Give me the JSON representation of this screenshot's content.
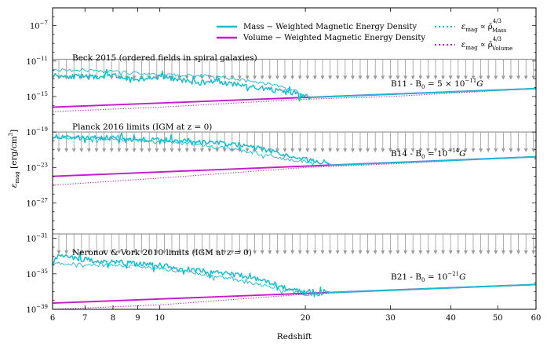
{
  "chart_data": {
    "type": "line",
    "xlabel": "Redshift",
    "ylabel": "ε_mag [erg/cm³]",
    "xscale": "log",
    "yscale": "log",
    "xlim": [
      6,
      60
    ],
    "ylim_exp": [
      -39,
      -5
    ],
    "x_ticks": [
      {
        "value": 6,
        "label": "6"
      },
      {
        "value": 7,
        "label": "7"
      },
      {
        "value": 8,
        "label": "8"
      },
      {
        "value": 9,
        "label": "9"
      },
      {
        "value": 10,
        "label": "10"
      },
      {
        "value": 20,
        "label": "20"
      },
      {
        "value": 30,
        "label": "30"
      },
      {
        "value": 40,
        "label": "40"
      },
      {
        "value": 50,
        "label": "50"
      },
      {
        "value": 60,
        "label": "60"
      }
    ],
    "y_ticks": [
      {
        "exp": -7,
        "label": "10",
        "sup": "−7"
      },
      {
        "exp": -11,
        "label": "10",
        "sup": "−11"
      },
      {
        "exp": -15,
        "label": "10",
        "sup": "−15"
      },
      {
        "exp": -19,
        "label": "10",
        "sup": "−19"
      },
      {
        "exp": -23,
        "label": "10",
        "sup": "−23"
      },
      {
        "exp": -27,
        "label": "10",
        "sup": "−27"
      },
      {
        "exp": -31,
        "label": "10",
        "sup": "−31"
      },
      {
        "exp": -35,
        "label": "10",
        "sup": "−35"
      },
      {
        "exp": -39,
        "label": "10",
        "sup": "−39"
      }
    ],
    "legend": [
      {
        "label": "Mass − Weighted Magnetic Energy Density",
        "color": "#17becf",
        "style": "solid"
      },
      {
        "label": "Volume − Weighted Magnetic Energy Density",
        "color": "#c51bd0",
        "style": "solid"
      },
      {
        "label": "ε_mag ∝ ρ̄^(4/3) Mass",
        "color": "#17becf",
        "style": "dotted"
      },
      {
        "label": "ε_mag ∝ ρ̄^(4/3) Volume",
        "color": "#c51bd0",
        "style": "dotted"
      }
    ],
    "limits": [
      {
        "name": "Beck 2015 (ordered fields in spiral galaxies)",
        "log10_eps": -10.8
      },
      {
        "name": "Planck 2016 limits (IGM at z = 0)",
        "log10_eps": -19.0
      },
      {
        "name": "Neronov & Vork 2010 limits (IGM at z = 0)",
        "log10_eps": -30.5
      }
    ],
    "series": [
      {
        "name": "B11 - B0 = 5 × 10^-11 G",
        "log10_B0": -10.3,
        "volume_weighted": {
          "z": [
            6,
            60
          ],
          "log10_eps": [
            -16.2,
            -14.1
          ]
        },
        "mass_weighted": {
          "z": [
            6,
            7,
            8,
            9,
            10,
            11,
            12,
            13,
            14,
            15,
            16,
            17,
            18,
            19,
            20,
            20.5
          ],
          "log10_eps": [
            -12.6,
            -12.8,
            -12.7,
            -13.1,
            -12.8,
            -13.1,
            -13.5,
            -13.2,
            -13.6,
            -13.8,
            -14.0,
            -14.2,
            -14.5,
            -14.6,
            -15.0,
            -15.1
          ]
        },
        "mass_dotted": {
          "z": [
            6,
            8,
            10,
            12,
            14,
            16,
            18,
            19,
            20
          ],
          "log10_eps": [
            -12.0,
            -12.2,
            -12.6,
            -12.6,
            -13.0,
            -13.4,
            -13.9,
            -14.3,
            -15.0
          ]
        },
        "volume_dotted": {
          "z": [
            6,
            10,
            20,
            30,
            60
          ],
          "log10_eps": [
            -16.7,
            -16.2,
            -15.3,
            -15.0,
            -14.1
          ]
        }
      },
      {
        "name": "B14 - B0 = 10^-14 G",
        "log10_B0": -14,
        "volume_weighted": {
          "z": [
            6,
            60
          ],
          "log10_eps": [
            -24.0,
            -21.8
          ]
        },
        "mass_weighted": {
          "z": [
            6,
            7,
            8,
            9,
            10,
            11,
            12,
            13,
            14,
            15,
            16,
            17,
            18,
            19,
            20,
            21,
            22
          ],
          "log10_eps": [
            -19.5,
            -19.7,
            -19.6,
            -19.9,
            -19.7,
            -20.0,
            -20.2,
            -20.1,
            -20.4,
            -20.5,
            -20.8,
            -21.2,
            -21.6,
            -21.9,
            -22.1,
            -22.3,
            -22.4
          ]
        },
        "mass_dotted": {
          "z": [
            6,
            8,
            10,
            12,
            14,
            16,
            18,
            19,
            20,
            21
          ],
          "log10_eps": [
            -19.6,
            -19.8,
            -20.1,
            -20.4,
            -20.9,
            -21.5,
            -22.0,
            -22.2,
            -22.3,
            -22.5
          ]
        },
        "volume_dotted": {
          "z": [
            6,
            10,
            20,
            30,
            60
          ],
          "log10_eps": [
            -25.0,
            -24.2,
            -23.0,
            -22.6,
            -21.8
          ]
        }
      },
      {
        "name": "B21 - B0 = 10^-21 G",
        "log10_B0": -21,
        "volume_weighted": {
          "z": [
            6,
            60
          ],
          "log10_eps": [
            -38.3,
            -36.2
          ]
        },
        "mass_weighted": {
          "z": [
            6,
            6.2,
            7,
            8,
            9,
            10,
            11,
            12,
            13,
            14,
            15,
            16,
            17,
            18,
            19,
            20,
            21,
            22
          ],
          "log10_eps": [
            -33.6,
            -32.9,
            -33.4,
            -33.6,
            -33.9,
            -34.0,
            -34.4,
            -34.6,
            -34.8,
            -35.0,
            -35.3,
            -35.6,
            -36.0,
            -36.5,
            -36.8,
            -37.2,
            -37.3,
            -37.0
          ]
        },
        "mass_dotted": {
          "z": [
            6,
            8,
            10,
            12,
            14,
            16,
            18,
            20,
            21
          ],
          "log10_eps": [
            -33.8,
            -34.0,
            -34.4,
            -35.0,
            -35.6,
            -36.2,
            -36.8,
            -37.3,
            -37.4
          ]
        },
        "volume_dotted": {
          "z": [
            6,
            10,
            20,
            30,
            60
          ],
          "log10_eps": [
            -39.0,
            -38.5,
            -37.3,
            -36.9,
            -36.2
          ]
        }
      }
    ]
  },
  "annotations": {
    "beck": "Beck 2015 (ordered fields in spiral galaxies)",
    "planck": "Planck 2016 limits (IGM at z = 0)",
    "neronov": "Neronov & Vork 2010 limits (IGM at z = 0)",
    "b11_prefix": "B11 - B",
    "b11_sub": "0",
    "b11_eq": " = 5 × 10",
    "b11_sup": "−11",
    "b11_unit": "G",
    "b14_prefix": "B14 - B",
    "b14_sub": "0",
    "b14_eq": " = 10",
    "b14_sup": "−14",
    "b14_unit": "G",
    "b21_prefix": "B21 - B",
    "b21_sub": "0",
    "b21_eq": " = 10",
    "b21_sup": "−21",
    "b21_unit": "G"
  },
  "legend_text": {
    "mass": "Mass − Weighted Magnetic Energy Density",
    "volume": "Volume − Weighted Magnetic Energy Density",
    "eps": "ε",
    "mag": "mag",
    "prop": " ∝ ρ̄",
    "pow": "4/3",
    "mass_sub": "Mass",
    "volume_sub": "Volume"
  },
  "axis_text": {
    "xlabel": "Redshift",
    "ylabel_eps": "ε",
    "ylabel_sub": "mag",
    "ylabel_unit": " [erg/cm",
    "ylabel_pow": "3",
    "ylabel_close": "]"
  },
  "colors": {
    "mass": "#17becf",
    "volume": "#c51bd0",
    "limit": "#9a9a9a"
  }
}
